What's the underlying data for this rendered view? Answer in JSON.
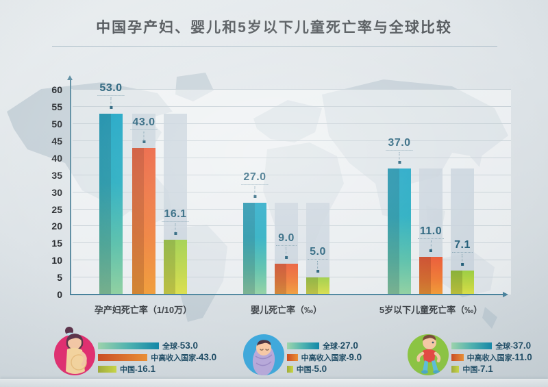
{
  "title": "中国孕产妇、婴儿和5岁以下儿童死亡率与全球比较",
  "chart_data": {
    "type": "bar",
    "title": "中国孕产妇、婴儿和5岁以下儿童死亡率与全球比较",
    "xlabel": "",
    "ylabel": "",
    "ylim": [
      0,
      60
    ],
    "ytick_step": 5,
    "grid": true,
    "yticks": [
      "0",
      "5",
      "10",
      "15",
      "20",
      "25",
      "30",
      "35",
      "40",
      "45",
      "50",
      "55",
      "60"
    ],
    "series_names": [
      "全球",
      "中高收入国家",
      "中国"
    ],
    "groups": [
      {
        "category": "孕产妇死亡率（1/10万）",
        "values": [
          53.0,
          43.0,
          16.1
        ],
        "labels": [
          "53.0",
          "43.0",
          "16.1"
        ]
      },
      {
        "category": "婴儿死亡率（‰）",
        "values": [
          27.0,
          9.0,
          5.0
        ],
        "labels": [
          "27.0",
          "9.0",
          "5.0"
        ]
      },
      {
        "category": "5岁以下儿童死亡率（‰）",
        "values": [
          37.0,
          11.0,
          7.1
        ],
        "labels": [
          "37.0",
          "11.0",
          "7.1"
        ]
      }
    ],
    "colors": {
      "global_top": "#12a1c2",
      "global_bottom": "#90d0a0",
      "upper_middle_income_top": "#ea5530",
      "upper_middle_income_bottom": "#f09c37",
      "china_top": "#9bcd41",
      "china_bottom": "#dade48",
      "shadow_bar": "#c6d1da",
      "value_label": "#1d5a75",
      "axis": "#48829c"
    }
  },
  "legend": {
    "blocks": [
      {
        "icon": "pregnant-woman-icon",
        "circle_color": "#e62a6e",
        "rows": [
          {
            "label": "全球-",
            "value": "53.0"
          },
          {
            "label": "中高收入国家-",
            "value": "43.0"
          },
          {
            "label": "中国-",
            "value": "16.1"
          }
        ]
      },
      {
        "icon": "baby-icon",
        "circle_color": "#3fa9dc",
        "rows": [
          {
            "label": "全球-",
            "value": "27.0"
          },
          {
            "label": "中高收入国家-",
            "value": "9.0"
          },
          {
            "label": "中国-",
            "value": "5.0"
          }
        ]
      },
      {
        "icon": "toddler-icon",
        "circle_color": "#8cc63f",
        "rows": [
          {
            "label": "全球-",
            "value": "37.0"
          },
          {
            "label": "中高收入国家-",
            "value": "11.0"
          },
          {
            "label": "中国-",
            "value": "7.1"
          }
        ]
      }
    ]
  }
}
